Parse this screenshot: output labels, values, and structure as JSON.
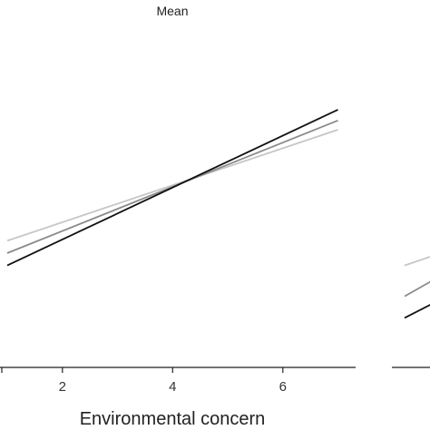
{
  "chart_data": [
    {
      "type": "line",
      "panel_title": "Mean",
      "xlabel": "Environmental concern",
      "ylabel": "",
      "x_ticks": [
        2,
        4,
        6
      ],
      "xlim": [
        0,
        7.4
      ],
      "grid": false,
      "series": [
        {
          "x": [
            1,
            7
          ],
          "y": [
            -0.42,
            0.3
          ],
          "color": "#c6c6c6"
        },
        {
          "x": [
            1,
            7
          ],
          "y": [
            -0.5,
            0.36
          ],
          "color": "#8a8a8a"
        },
        {
          "x": [
            1,
            7
          ],
          "y": [
            -0.58,
            0.43
          ],
          "color": "#111111"
        }
      ]
    },
    {
      "type": "line",
      "panel_title": "",
      "partial": true,
      "series": [
        {
          "x": [
            0.0,
            0.6
          ],
          "y": [
            -0.58,
            -0.52
          ],
          "color": "#c6c6c6"
        },
        {
          "x": [
            0.0,
            0.6
          ],
          "y": [
            -0.78,
            -0.68
          ],
          "color": "#8a8a8a"
        },
        {
          "x": [
            0.0,
            0.6
          ],
          "y": [
            -0.92,
            -0.83
          ],
          "color": "#111111"
        }
      ]
    }
  ]
}
